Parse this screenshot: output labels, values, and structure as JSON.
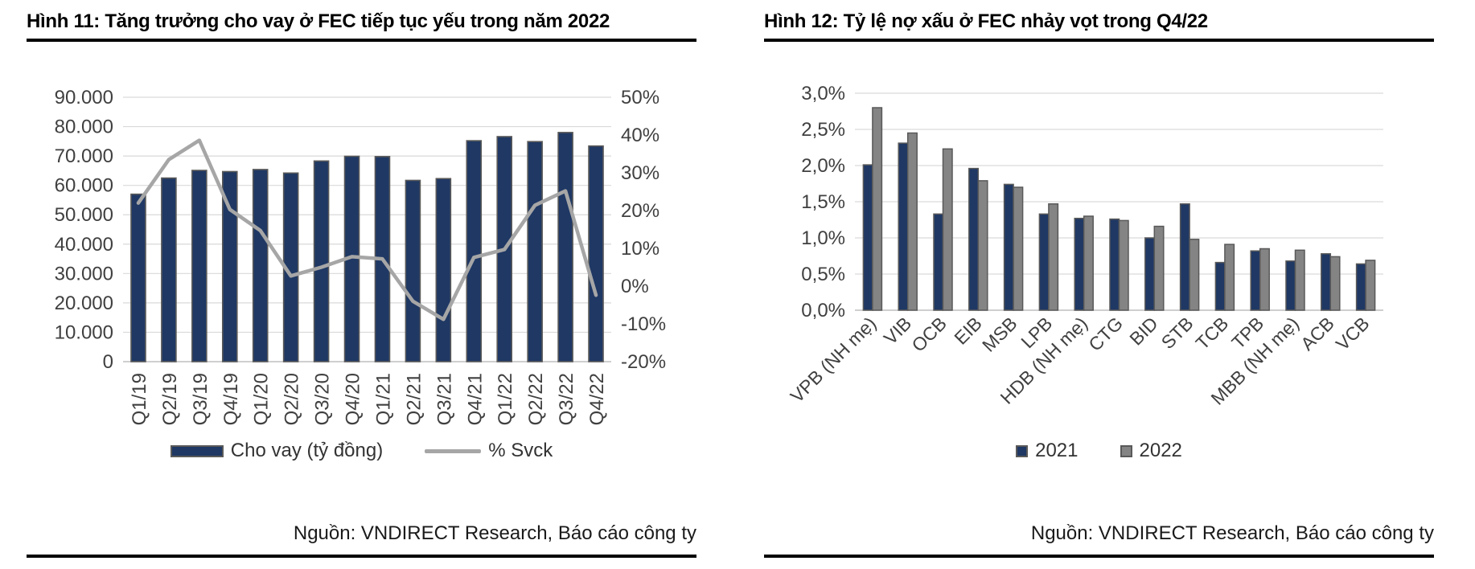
{
  "colors": {
    "navy": "#1F3864",
    "bar_border": "#595959",
    "gray_line": "#A6A6A6",
    "gray_bar": "#848484",
    "grid": "#D9D9D9",
    "axis_line": "#BFBFBF",
    "axis_text": "#404040",
    "rule": "#000000"
  },
  "figures": [
    {
      "title": "Hình 11: Tăng trưởng cho vay ở FEC tiếp tục yếu trong năm 2022",
      "source": "Nguồn: VNDIRECT Research, Báo cáo công ty",
      "chart_data": {
        "type": "bar",
        "subtype": "bar-line-combo",
        "categories": [
          "Q1/19",
          "Q2/19",
          "Q3/19",
          "Q4/19",
          "Q1/20",
          "Q2/20",
          "Q3/20",
          "Q4/20",
          "Q1/21",
          "Q2/21",
          "Q3/21",
          "Q4/21",
          "Q1/22",
          "Q2/22",
          "Q3/22",
          "Q4/22"
        ],
        "series": [
          {
            "name": "Cho vay (tỷ đồng)",
            "type": "bar",
            "axis": "left",
            "color": "#1F3864",
            "values": [
              57000,
              62500,
              65100,
              64700,
              65400,
              64200,
              68300,
              69900,
              69800,
              61700,
              62300,
              75200,
              76600,
              74900,
              78000,
              73400
            ]
          },
          {
            "name": "% Svck",
            "type": "line",
            "axis": "right",
            "color": "#A6A6A6",
            "values": [
              22.0,
              33.5,
              38.6,
              20.3,
              14.7,
              2.7,
              5.0,
              7.8,
              7.2,
              -4.0,
              -8.8,
              7.6,
              9.7,
              21.4,
              25.2,
              -2.4
            ]
          }
        ],
        "left_axis": {
          "min": 0,
          "max": 90000,
          "step": 10000,
          "tick_values": [
            0,
            10000,
            20000,
            30000,
            40000,
            50000,
            60000,
            70000,
            80000,
            90000
          ],
          "tick_labels": [
            "0",
            "10.000",
            "20.000",
            "30.000",
            "40.000",
            "50.000",
            "60.000",
            "70.000",
            "80.000",
            "90.000"
          ]
        },
        "right_axis": {
          "min": -20,
          "max": 50,
          "step": 10,
          "tick_values": [
            -20,
            -10,
            0,
            10,
            20,
            30,
            40,
            50
          ],
          "tick_labels": [
            "-20%",
            "-10%",
            "0%",
            "10%",
            "20%",
            "30%",
            "40%",
            "50%"
          ]
        },
        "grid": true,
        "legend_position": "bottom"
      }
    },
    {
      "title": "Hình 12: Tỷ lệ nợ xấu ở FEC nhảy vọt trong Q4/22",
      "source": "Nguồn: VNDIRECT Research, Báo cáo công ty",
      "chart_data": {
        "type": "bar",
        "subtype": "grouped-bar",
        "categories": [
          "VPB (NH mẹ)",
          "VIB",
          "OCB",
          "EIB",
          "MSB",
          "LPB",
          "HDB (NH mẹ)",
          "CTG",
          "BID",
          "STB",
          "TCB",
          "TPB",
          "MBB (NH mẹ)",
          "ACB",
          "VCB"
        ],
        "series": [
          {
            "name": "2021",
            "color": "#1F3864",
            "values": [
              2.01,
              2.31,
              1.33,
              1.96,
              1.74,
              1.33,
              1.27,
              1.26,
              1.0,
              1.47,
              0.66,
              0.82,
              0.68,
              0.78,
              0.64
            ]
          },
          {
            "name": "2022",
            "color": "#848484",
            "values": [
              2.8,
              2.45,
              2.23,
              1.79,
              1.7,
              1.47,
              1.3,
              1.24,
              1.16,
              0.98,
              0.91,
              0.85,
              0.83,
              0.74,
              0.69
            ]
          }
        ],
        "y_axis": {
          "min": 0,
          "max": 3.0,
          "step": 0.5,
          "tick_values": [
            0,
            0.5,
            1.0,
            1.5,
            2.0,
            2.5,
            3.0
          ],
          "tick_labels": [
            "0,0%",
            "0,5%",
            "1,0%",
            "1,5%",
            "2,0%",
            "2,5%",
            "3,0%"
          ]
        },
        "grid": true,
        "legend_position": "bottom"
      }
    }
  ]
}
